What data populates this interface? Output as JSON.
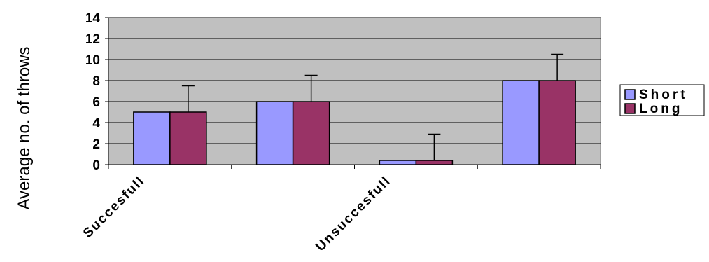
{
  "chart_data": {
    "type": "bar",
    "ylabel": "Average  no. of throws",
    "xlabel": "",
    "ylim": [
      0,
      14
    ],
    "yticks": [
      0,
      2,
      4,
      6,
      8,
      10,
      12,
      14
    ],
    "categories": [
      "Succesfull",
      "",
      "Unsuccesfull",
      ""
    ],
    "series": [
      {
        "name": "Short",
        "color": "#9999ff",
        "values": [
          5,
          6,
          0.4,
          8
        ],
        "errors": [
          2.5,
          2.5,
          2.5,
          2.5
        ]
      },
      {
        "name": "Long",
        "color": "#993366",
        "values": [
          5,
          6,
          0.4,
          8
        ],
        "errors": [
          2.5,
          2.5,
          2.5,
          2.5
        ]
      }
    ],
    "grid": true,
    "plot_background": "#c0c0c0",
    "legend_position": "right"
  }
}
